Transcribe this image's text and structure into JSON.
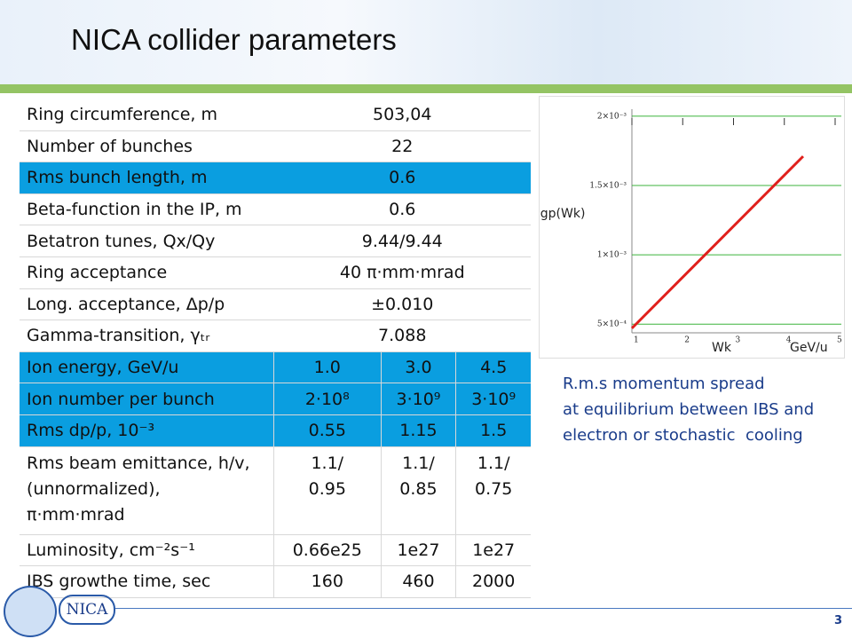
{
  "header": {
    "title": "NICA collider parameters",
    "logo": "NICA"
  },
  "table": {
    "rows": [
      {
        "label": "Ring circumference, m",
        "values": [
          "503,04"
        ]
      },
      {
        "label": "Number of bunches",
        "values": [
          "22"
        ]
      },
      {
        "label": "Rms bunch length, m",
        "values": [
          "0.6"
        ]
      },
      {
        "label": "Beta-function in the IP, m",
        "values": [
          "0.6"
        ]
      },
      {
        "label": "Betatron tunes, Qx/Qy",
        "values": [
          "9.44/9.44"
        ]
      },
      {
        "label": "Ring acceptance",
        "values": [
          "40 π·mm·mrad"
        ]
      },
      {
        "label": "Long. acceptance, Δp/p",
        "values": [
          "±0.010"
        ]
      },
      {
        "label": "Gamma-transition, γₜᵣ",
        "values": [
          "7.088"
        ]
      },
      {
        "label": "Ion energy, GeV/u",
        "values": [
          "1.0",
          "3.0",
          "4.5"
        ]
      },
      {
        "label": "Ion number per bunch",
        "values": [
          "2·10⁸",
          "3·10⁹",
          "3·10⁹"
        ]
      },
      {
        "label": "Rms  dp/p, 10⁻³",
        "values": [
          "0.55",
          "1.15",
          "1.5"
        ]
      },
      {
        "label": "Rms beam emittance, h/v,\n(unnormalized),\nπ·mm·mrad",
        "values": [
          "1.1/\n0.95",
          "1.1/\n0.85",
          "1.1/\n0.75"
        ]
      },
      {
        "label": "Luminosity, cm⁻²s⁻¹",
        "values": [
          "0.66e25",
          "1e27",
          "1e27"
        ]
      },
      {
        "label": "IBS growthe time, sec",
        "values": [
          "160",
          "460",
          "2000"
        ]
      }
    ]
  },
  "chart_data": {
    "type": "line",
    "y_label": "Sigp(Wk)",
    "x_label": "Wk",
    "x_unit": "GeV/u",
    "x": [
      1,
      4.37
    ],
    "series": [
      {
        "color": "#e0201c",
        "values": [
          0.00047,
          0.00171
        ]
      }
    ],
    "xlim": [
      1,
      5
    ],
    "xticks": [
      1,
      2,
      3,
      4,
      5
    ],
    "ylim": [
      0.00045,
      0.00205
    ],
    "yticks": [
      {
        "value": 0.0005,
        "label": "5×10⁻⁴"
      },
      {
        "value": 0.001,
        "label": "1×10⁻³"
      },
      {
        "value": 0.0015,
        "label": "1.5×10⁻³"
      },
      {
        "value": 0.002,
        "label": "2×10⁻³"
      }
    ],
    "grid": true,
    "grid_color": "#3cb33c"
  },
  "caption": [
    "R.m.s momentum spread",
    "at equilibrium between IBS and",
    "electron or stochastic  cooling"
  ],
  "page_number": "3"
}
